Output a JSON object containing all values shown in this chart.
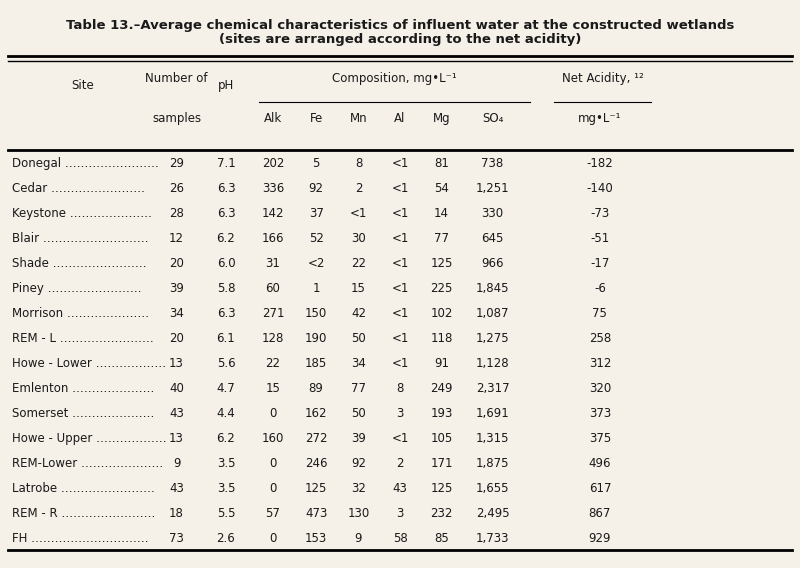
{
  "title1": "Table 13.–Average chemical characteristics of influent water at the constructed wetlands",
  "title2": "(sites are arranged according to the net acidity)",
  "rows": [
    [
      "Donegal ……………………",
      "29",
      "7.1",
      "202",
      "5",
      "8",
      "<1",
      "81",
      "738",
      "-182"
    ],
    [
      "Cedar ……………………",
      "26",
      "6.3",
      "336",
      "92",
      "2",
      "<1",
      "54",
      "1,251",
      "-140"
    ],
    [
      "Keystone …………………",
      "28",
      "6.3",
      "142",
      "37",
      "<1",
      "<1",
      "14",
      "330",
      "-73"
    ],
    [
      "Blair ………………………",
      "12",
      "6.2",
      "166",
      "52",
      "30",
      "<1",
      "77",
      "645",
      "-51"
    ],
    [
      "Shade ……………………",
      "20",
      "6.0",
      "31",
      "<2",
      "22",
      "<1",
      "125",
      "966",
      "-17"
    ],
    [
      "Piney ……………………",
      "39",
      "5.8",
      "60",
      "1",
      "15",
      "<1",
      "225",
      "1,845",
      "-6"
    ],
    [
      "Morrison …………………",
      "34",
      "6.3",
      "271",
      "150",
      "42",
      "<1",
      "102",
      "1,087",
      "75"
    ],
    [
      "REM - L ……………………",
      "20",
      "6.1",
      "128",
      "190",
      "50",
      "<1",
      "118",
      "1,275",
      "258"
    ],
    [
      "Howe - Lower ………………",
      "13",
      "5.6",
      "22",
      "185",
      "34",
      "<1",
      "91",
      "1,128",
      "312"
    ],
    [
      "Emlenton …………………",
      "40",
      "4.7",
      "15",
      "89",
      "77",
      "8",
      "249",
      "2,317",
      "320"
    ],
    [
      "Somerset …………………",
      "43",
      "4.4",
      "0",
      "162",
      "50",
      "3",
      "193",
      "1,691",
      "373"
    ],
    [
      "Howe - Upper ………………",
      "13",
      "6.2",
      "160",
      "272",
      "39",
      "<1",
      "105",
      "1,315",
      "375"
    ],
    [
      "REM-Lower …………………",
      "9",
      "3.5",
      "0",
      "246",
      "92",
      "2",
      "171",
      "1,875",
      "496"
    ],
    [
      "Latrobe ……………………",
      "43",
      "3.5",
      "0",
      "125",
      "32",
      "43",
      "125",
      "1,655",
      "617"
    ],
    [
      "REM - R ……………………",
      "18",
      "5.5",
      "57",
      "473",
      "130",
      "3",
      "232",
      "2,495",
      "867"
    ],
    [
      "FH …………………………",
      "73",
      "2.6",
      "0",
      "153",
      "9",
      "58",
      "85",
      "1,733",
      "929"
    ]
  ],
  "bg_color": "#f5f0e8",
  "text_color": "#1a1a1a",
  "title_fontsize": 9.5,
  "header_fontsize": 8.5,
  "data_fontsize": 8.5
}
